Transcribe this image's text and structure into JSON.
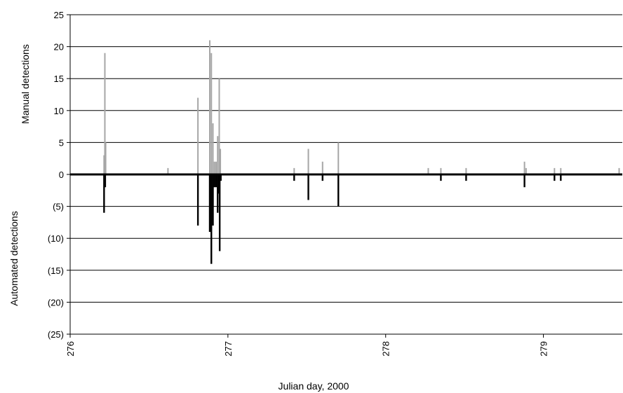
{
  "chart_data": {
    "type": "bar",
    "xlabel": "Julian day, 2000",
    "ylabel_top": "Manual detections",
    "ylabel_bottom": "Automated detections",
    "x_ticks": [
      "276",
      "277",
      "278",
      "279"
    ],
    "x_tick_values": [
      276,
      277,
      278,
      279
    ],
    "xlim": [
      276,
      279.5
    ],
    "ylim": [
      -25,
      25
    ],
    "y_ticks": [
      25,
      20,
      15,
      10,
      5,
      0,
      -5,
      -10,
      -15,
      -20,
      -25
    ],
    "y_tick_labels": [
      "25",
      "20",
      "15",
      "10",
      "5",
      "0",
      "(5)",
      "(10)",
      "(15)",
      "(20)",
      "(25)"
    ],
    "grid": true,
    "series": [
      {
        "color": "#a6a6a6",
        "points": [
          {
            "x": 276.215,
            "y": 3
          },
          {
            "x": 276.22,
            "y": 19
          },
          {
            "x": 276.225,
            "y": 5
          },
          {
            "x": 276.62,
            "y": 1
          },
          {
            "x": 276.81,
            "y": 12
          },
          {
            "x": 276.885,
            "y": 21
          },
          {
            "x": 276.895,
            "y": 19
          },
          {
            "x": 276.905,
            "y": 8
          },
          {
            "x": 276.915,
            "y": 2
          },
          {
            "x": 276.925,
            "y": 2
          },
          {
            "x": 276.935,
            "y": 6
          },
          {
            "x": 276.945,
            "y": 15
          },
          {
            "x": 276.952,
            "y": 4
          },
          {
            "x": 277.42,
            "y": 1
          },
          {
            "x": 277.51,
            "y": 4
          },
          {
            "x": 277.6,
            "y": 2
          },
          {
            "x": 277.7,
            "y": 5
          },
          {
            "x": 278.27,
            "y": 1
          },
          {
            "x": 278.35,
            "y": 1
          },
          {
            "x": 278.51,
            "y": 1
          },
          {
            "x": 278.88,
            "y": 2
          },
          {
            "x": 278.89,
            "y": 1
          },
          {
            "x": 279.07,
            "y": 1
          },
          {
            "x": 279.11,
            "y": 1
          },
          {
            "x": 279.48,
            "y": 1
          }
        ]
      },
      {
        "color": "#000000",
        "points": [
          {
            "x": 276.215,
            "y": -6
          },
          {
            "x": 276.222,
            "y": -2
          },
          {
            "x": 276.81,
            "y": -8
          },
          {
            "x": 276.885,
            "y": -9
          },
          {
            "x": 276.895,
            "y": -14
          },
          {
            "x": 276.905,
            "y": -8
          },
          {
            "x": 276.915,
            "y": -2
          },
          {
            "x": 276.925,
            "y": -2
          },
          {
            "x": 276.935,
            "y": -6
          },
          {
            "x": 276.942,
            "y": -3
          },
          {
            "x": 276.948,
            "y": -12
          },
          {
            "x": 276.955,
            "y": -1
          },
          {
            "x": 277.42,
            "y": -1
          },
          {
            "x": 277.51,
            "y": -4
          },
          {
            "x": 277.6,
            "y": -1
          },
          {
            "x": 277.7,
            "y": -5
          },
          {
            "x": 278.35,
            "y": -1
          },
          {
            "x": 278.51,
            "y": -1
          },
          {
            "x": 278.88,
            "y": -2
          },
          {
            "x": 279.07,
            "y": -1
          },
          {
            "x": 279.11,
            "y": -1
          }
        ]
      }
    ]
  }
}
